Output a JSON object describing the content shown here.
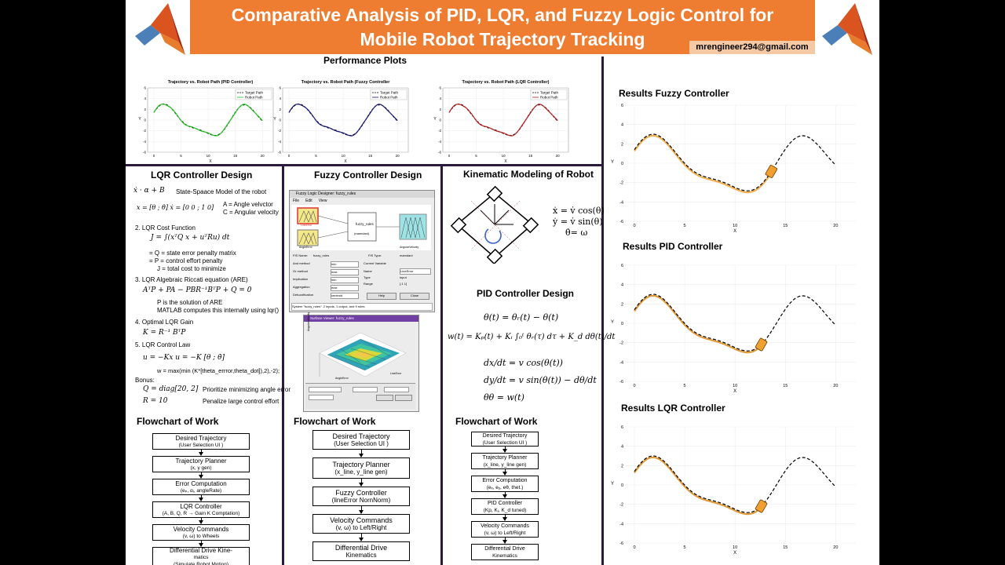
{
  "header": {
    "title_line1": "Comparative Analysis of PID, LQR, and Fuzzy Logic Control for",
    "title_line2": "Mobile Robot Trajectory Tracking",
    "email": "mrengineer294@gmail.com"
  },
  "performance": {
    "title": "Performance Plots",
    "plots": [
      {
        "title": "Trajectory vs. Robot Path (PID Controller)",
        "color": "#22c422",
        "legend_target": "Target Path",
        "legend_robot": "Robot Path"
      },
      {
        "title": "Trajectory vs. Robot Path (Fuzzy Controller",
        "color": "#1a1a7a",
        "legend_target": "Target Path",
        "legend_robot": "Robot Path"
      },
      {
        "title": "Trajectory vs. Robot Path (LQR Controller)",
        "color": "#b81f1f",
        "legend_target": "Target Path",
        "legend_robot": "Robot Path"
      }
    ],
    "xlabel": "X",
    "ylabel": "Y",
    "xticks": [
      "0",
      "5",
      "10",
      "15",
      "20"
    ],
    "yticks": [
      "6",
      "4",
      "2",
      "0",
      "-2",
      "-4",
      "-6"
    ]
  },
  "lqr": {
    "title": "LQR Controller Design",
    "state_model_text": "State-Spaace Model of the robot",
    "state_eq": "ẋ · α + B",
    "a_label": "A = Angle velvctor",
    "c_label": "C = Angular velocity",
    "step2": "2.  LQR Cost Function",
    "cost_eq": "J = ∫(xᵀQ x + uᵀRu) dt",
    "q_desc": "= Q = state error penalty matrix",
    "p_desc": "= P = control effort penalty",
    "j_desc": "J = total cost to minimize",
    "step3": "3.  LQR Algebraic Riccati equation (ARE)",
    "are_eq": "AᵀP + PA − PBR⁻¹BᵀP + Q = 0",
    "p_sol": "P is the solution of ARE",
    "matlab_note": "MATLAB computes this internally using  lqr()",
    "step4": "4.  Optimal LQR Gain",
    "gain_eq": "K = R⁻¹ BᵀP",
    "step5": "5.  LQR Control Law",
    "law_eq": "u = −Kx     u = −K [θ ; θ̇]",
    "w_eq": "w = max(min (K*[theta_errror,theta_dot]),2),-2);",
    "bonus": "Bonus:",
    "q_bonus_eq": "Q = diag[20, 2]",
    "q_bonus_desc": "Prioritize minimizing angle error",
    "r_bonus_eq": "R = 10",
    "r_bonus_desc": "Penalize large control effort"
  },
  "fuzzy": {
    "title": "Fuzzy Controller Design",
    "window_title": "Fuzzy Logic Designer: fuzzy_rules",
    "menu": [
      "File",
      "Edit",
      "View"
    ],
    "center_label": "fuzzy_rules",
    "center_sub": "(mamdani)",
    "input1": "LineError",
    "input2": "AngleError",
    "output": "AngularVelocity",
    "fis_name_label": "FIS Name:",
    "fis_name": "fuzzy_rules",
    "fis_type_label": "FIS Type:",
    "fis_type": "mamdani",
    "methods": [
      "And method",
      "Or method",
      "Implication",
      "Aggregation",
      "Defuzzification"
    ],
    "method_values": [
      "min",
      "max",
      "min",
      "max",
      "centroid"
    ],
    "current_var_label": "Current Variable",
    "var_fields": [
      "Name",
      "Type",
      "Range"
    ],
    "var_values": [
      "LineError",
      "input",
      "[-1 1]"
    ],
    "help_btn": "Help",
    "close_btn": "Close",
    "status": "System \"fuzzy_rules\": 2 inputs, 1 output, and 9 rules",
    "surface_title": "Surface Viewer: fuzzy_rules",
    "surface_xlabel": "AngleError",
    "surface_ylabel": "LineError",
    "surface_zlabel": "AngularVelocity"
  },
  "kinematic": {
    "title": "Kinematic Modeling of Robot",
    "eq1": "ẋ = v̇ cos(θ)",
    "eq2": "ẏ = v̇ sin(θ)",
    "eq3": "θ̇= ω"
  },
  "pid": {
    "title": "PID Controller Design",
    "eq1": "θ(t) = θᵣ(t) − θ(t)",
    "eq2": "w(t) = Kₚ(t) + Kᵢ ∫₀ᵗ θᵣ(τ) dτ + K_d dθ(t)/dt",
    "eq3": "dx/dt = v cos(θ(t))",
    "eq4": "dy/dt = v sin(θ(t)) − dθ/dt",
    "eq5": "θθ = w(t)"
  },
  "flowcharts": [
    {
      "title": "Flowchart of Work",
      "steps": [
        {
          "line1": "Desired Trajectory",
          "line2": "(User Selection UI )"
        },
        {
          "line1": "Trajectory Planner",
          "line2": "(x, y gen)"
        },
        {
          "line1": "Error Computation",
          "line2": "(eₚ, αᵢ, angleRate)"
        },
        {
          "line1": "LQR Controller",
          "line2": "(A, B, Q, R → Gain K Comptation)"
        },
        {
          "line1": "Velocity Commands",
          "line2": "(v, ω) to Wheels"
        },
        {
          "line1": "Differential Drive Kine-",
          "line2": "matics",
          "line3": "(Simulate Robot Motion)"
        }
      ]
    },
    {
      "title": "Flowchart of Work",
      "steps": [
        {
          "line1": "Desired Trajectory",
          "line2": "(User Selection UI )"
        },
        {
          "line1": "Trajectory Planner",
          "line2": "(x_line, y_line gen)"
        },
        {
          "line1": "Fuzzy Controller",
          "line2": "(lineError NornNorm)"
        },
        {
          "line1": "Velocity Commands",
          "line2": "(v, ω) to Left/Right"
        },
        {
          "line1": "Differential Drive",
          "line2": "Kinematics"
        }
      ]
    },
    {
      "title": "Flowchart of Work",
      "steps": [
        {
          "line1": "Desired Trajectory",
          "line2": "(User Selection UI )"
        },
        {
          "line1": "Trajectory Planner",
          "line2": "(x_line, y_line gen)"
        },
        {
          "line1": "Error Computation",
          "line2": "(eₓ, eᵧ, eθ, thet.)"
        },
        {
          "line1": "PID Controller",
          "line2": "(Kp, Kᵢ, K_d tuned)"
        },
        {
          "line1": "Velocity Commands",
          "line2": "(v, ω) to Left/Right"
        },
        {
          "line1": "Differential Drive",
          "line2": "Kinematics"
        }
      ]
    }
  ],
  "results": [
    {
      "title": "Results Fuzzy Controller",
      "path_color": "#f0b050"
    },
    {
      "title": "Results PID Controller",
      "path_color": "#e09a3a"
    },
    {
      "title": "Results LQR Controller",
      "path_color": "#e09a3a"
    }
  ],
  "results_axes": {
    "xlabel": "X",
    "ylabel": "Y",
    "xticks": [
      "0",
      "5",
      "10",
      "15",
      "20"
    ],
    "yticks": [
      "6",
      "4",
      "2",
      "0",
      "-2",
      "-4",
      "-6"
    ]
  }
}
